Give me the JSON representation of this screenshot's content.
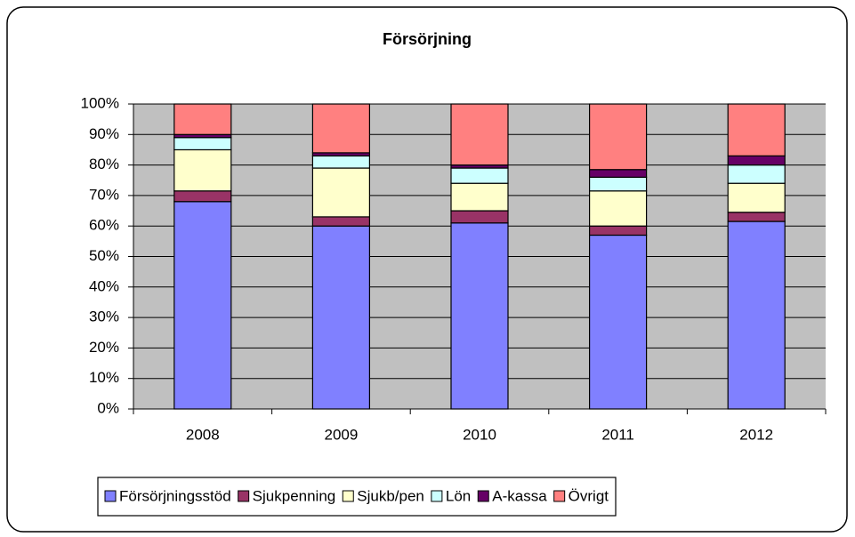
{
  "chart_data": {
    "type": "stacked_bar",
    "title": "Försörjning",
    "categories": [
      "2008",
      "2009",
      "2010",
      "2011",
      "2012"
    ],
    "series": [
      {
        "name": "Försörjningsstöd",
        "color": "#8080ff",
        "values": [
          68,
          60,
          61,
          57,
          61.5
        ]
      },
      {
        "name": "Sjukpenning",
        "color": "#993366",
        "values": [
          3.5,
          3,
          4,
          3,
          3
        ]
      },
      {
        "name": "Sjukb/pen",
        "color": "#ffffcc",
        "values": [
          13.5,
          16,
          9,
          11.5,
          9.5
        ]
      },
      {
        "name": "Lön",
        "color": "#ccffff",
        "values": [
          4,
          4,
          5,
          4.5,
          6
        ]
      },
      {
        "name": "A-kassa",
        "color": "#660066",
        "values": [
          1,
          1,
          1,
          2.5,
          3
        ]
      },
      {
        "name": "Övrigt",
        "color": "#ff8080",
        "values": [
          10,
          16,
          20,
          21.5,
          17
        ]
      }
    ],
    "ylim": [
      0,
      100
    ],
    "yticks": [
      {
        "value": 0,
        "label": "0%"
      },
      {
        "value": 10,
        "label": "10%"
      },
      {
        "value": 20,
        "label": "20%"
      },
      {
        "value": 30,
        "label": "30%"
      },
      {
        "value": 40,
        "label": "40%"
      },
      {
        "value": 50,
        "label": "50%"
      },
      {
        "value": 60,
        "label": "60%"
      },
      {
        "value": 70,
        "label": "70%"
      },
      {
        "value": 80,
        "label": "80%"
      },
      {
        "value": 90,
        "label": "90%"
      },
      {
        "value": 100,
        "label": "100%"
      }
    ],
    "grid": true,
    "plot_background": "#c0c0c0",
    "legend": "bottom"
  }
}
